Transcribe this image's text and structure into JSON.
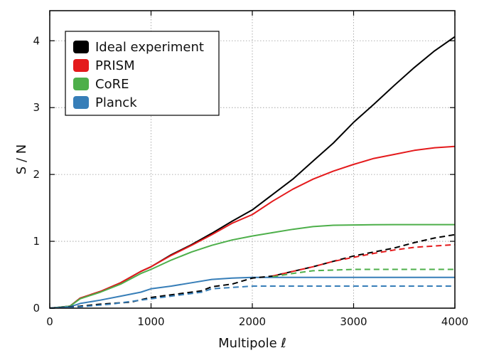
{
  "chart_data": {
    "type": "line",
    "title": "",
    "xlabel": "Multipole ℓ",
    "ylabel": "S / N",
    "xlim": [
      0,
      4000
    ],
    "ylim": [
      0,
      4.45
    ],
    "xticks": [
      0,
      1000,
      2000,
      3000,
      4000
    ],
    "yticks": [
      0,
      1,
      2,
      3,
      4
    ],
    "grid": true,
    "legend_position": "top-left",
    "legend": [
      {
        "name": "Ideal experiment",
        "color": "#000000"
      },
      {
        "name": "PRISM",
        "color": "#e41a1c"
      },
      {
        "name": "CoRE",
        "color": "#4daf4a"
      },
      {
        "name": "Planck",
        "color": "#377eb8"
      }
    ],
    "series": [
      {
        "name": "Ideal experiment",
        "style": "solid",
        "color": "#000000",
        "x": [
          0,
          200,
          300,
          500,
          700,
          900,
          1000,
          1200,
          1400,
          1600,
          1800,
          2000,
          2200,
          2400,
          2600,
          2800,
          3000,
          3200,
          3400,
          3600,
          3800,
          4000
        ],
        "y": [
          0,
          0.03,
          0.15,
          0.25,
          0.38,
          0.55,
          0.62,
          0.8,
          0.95,
          1.12,
          1.3,
          1.47,
          1.7,
          1.93,
          2.2,
          2.47,
          2.78,
          3.05,
          3.33,
          3.6,
          3.85,
          4.06
        ]
      },
      {
        "name": "PRISM",
        "style": "solid",
        "color": "#e41a1c",
        "x": [
          0,
          200,
          300,
          500,
          700,
          900,
          1000,
          1200,
          1400,
          1600,
          1800,
          2000,
          2200,
          2400,
          2600,
          2800,
          3000,
          3200,
          3400,
          3600,
          3800,
          4000
        ],
        "y": [
          0,
          0.03,
          0.15,
          0.25,
          0.38,
          0.55,
          0.62,
          0.79,
          0.94,
          1.1,
          1.27,
          1.4,
          1.6,
          1.78,
          1.93,
          2.05,
          2.15,
          2.24,
          2.3,
          2.36,
          2.4,
          2.42
        ]
      },
      {
        "name": "CoRE",
        "style": "solid",
        "color": "#4daf4a",
        "x": [
          0,
          200,
          300,
          500,
          700,
          900,
          1000,
          1200,
          1400,
          1600,
          1800,
          2000,
          2200,
          2400,
          2600,
          2800,
          3000,
          3200,
          3400,
          3600,
          3800,
          4000
        ],
        "y": [
          0,
          0.03,
          0.14,
          0.24,
          0.36,
          0.52,
          0.58,
          0.72,
          0.84,
          0.94,
          1.02,
          1.08,
          1.13,
          1.18,
          1.22,
          1.24,
          1.245,
          1.248,
          1.25,
          1.25,
          1.25,
          1.25
        ]
      },
      {
        "name": "Planck",
        "style": "solid",
        "color": "#377eb8",
        "x": [
          0,
          200,
          300,
          500,
          700,
          900,
          1000,
          1200,
          1400,
          1600,
          1800,
          2000,
          2200,
          2400,
          2600,
          2800,
          3000,
          3200,
          3400,
          3600,
          3800,
          4000
        ],
        "y": [
          0,
          0.02,
          0.07,
          0.12,
          0.18,
          0.24,
          0.29,
          0.33,
          0.38,
          0.43,
          0.45,
          0.46,
          0.46,
          0.46,
          0.46,
          0.46,
          0.46,
          0.46,
          0.46,
          0.46,
          0.46,
          0.46
        ]
      },
      {
        "name": "Ideal experiment (dashed)",
        "style": "dashed",
        "color": "#000000",
        "x": [
          0,
          300,
          500,
          800,
          1000,
          1200,
          1400,
          1500,
          1600,
          1800,
          2000,
          2200,
          2400,
          2600,
          2800,
          3000,
          3200,
          3400,
          3600,
          3800,
          4000
        ],
        "y": [
          0,
          0.03,
          0.06,
          0.09,
          0.16,
          0.2,
          0.24,
          0.26,
          0.32,
          0.36,
          0.45,
          0.48,
          0.55,
          0.62,
          0.7,
          0.78,
          0.84,
          0.9,
          0.98,
          1.05,
          1.1
        ]
      },
      {
        "name": "PRISM (dashed)",
        "style": "dashed",
        "color": "#e41a1c",
        "x": [
          2200,
          2400,
          2600,
          2800,
          3000,
          3200,
          3400,
          3600,
          3800,
          4000
        ],
        "y": [
          0.48,
          0.55,
          0.62,
          0.7,
          0.76,
          0.82,
          0.87,
          0.91,
          0.93,
          0.95
        ]
      },
      {
        "name": "CoRE (dashed)",
        "style": "dashed",
        "color": "#4daf4a",
        "x": [
          2200,
          2400,
          2600,
          2800,
          3000,
          3200,
          3400,
          3600,
          3800,
          4000
        ],
        "y": [
          0.47,
          0.52,
          0.56,
          0.57,
          0.58,
          0.58,
          0.58,
          0.58,
          0.58,
          0.58
        ]
      },
      {
        "name": "Planck (dashed)",
        "style": "dashed",
        "color": "#377eb8",
        "x": [
          0,
          300,
          600,
          900,
          1200,
          1500,
          1600,
          1800,
          2000,
          2200,
          2400,
          2600,
          2800,
          3000,
          3200,
          3400,
          3600,
          3800,
          4000
        ],
        "y": [
          0,
          0.02,
          0.06,
          0.12,
          0.18,
          0.24,
          0.29,
          0.31,
          0.33,
          0.33,
          0.33,
          0.33,
          0.33,
          0.33,
          0.33,
          0.33,
          0.33,
          0.33,
          0.33
        ]
      }
    ]
  }
}
